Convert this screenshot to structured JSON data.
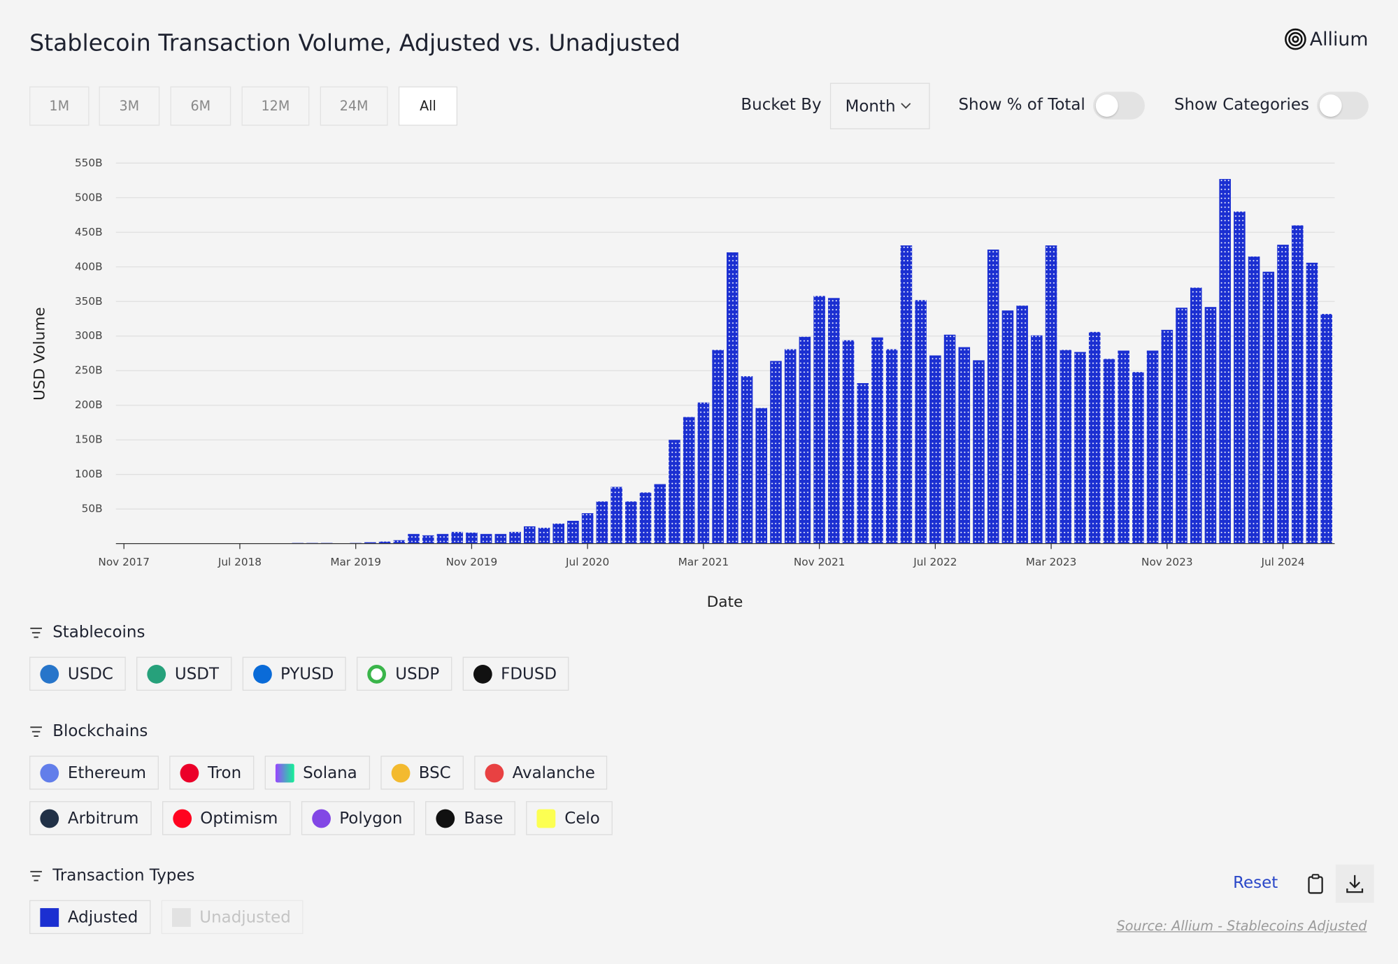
{
  "header": {
    "title": "Stablecoin Transaction Volume, Adjusted vs. Unadjusted",
    "logo": "Allium"
  },
  "controls": {
    "ranges": [
      "1M",
      "3M",
      "6M",
      "12M",
      "24M",
      "All"
    ],
    "bucket_label": "Bucket By",
    "bucket_value": "Month",
    "toggle_percent": "Show % of Total",
    "toggle_categories": "Show Categories"
  },
  "chart_data": {
    "type": "bar",
    "x_label": "Date",
    "y_label": "USD Volume",
    "categories": [
      "Nov 2017",
      null,
      null,
      null,
      null,
      null,
      null,
      null,
      "Jul 2018",
      null,
      null,
      null,
      null,
      null,
      null,
      null,
      "Mar 2019",
      null,
      null,
      null,
      null,
      null,
      null,
      null,
      "Nov 2019",
      null,
      null,
      null,
      null,
      null,
      null,
      null,
      "Jul 2020",
      null,
      null,
      null,
      null,
      null,
      null,
      null,
      "Mar 2021",
      null,
      null,
      null,
      null,
      null,
      null,
      null,
      "Nov 2021",
      null,
      null,
      null,
      null,
      null,
      null,
      null,
      "Jul 2022",
      null,
      null,
      null,
      null,
      null,
      null,
      null,
      "Mar 2023",
      null,
      null,
      null,
      null,
      null,
      null,
      null,
      "Nov 2023",
      null,
      null,
      null,
      null,
      null,
      null,
      null,
      "Jul 2024",
      null,
      null,
      null
    ],
    "series": [
      {
        "name": "Adjusted",
        "color": "#1b2fd1",
        "values": [
          0,
          0,
          0,
          0,
          0,
          0,
          0,
          0,
          0,
          0,
          0.3,
          0.5,
          1,
          1,
          1,
          0.5,
          1,
          2,
          3,
          5,
          14,
          12,
          14,
          17,
          16,
          14,
          14,
          17,
          25,
          23,
          29,
          33,
          44,
          61,
          82,
          61,
          74,
          86,
          150,
          183,
          204,
          280,
          421,
          242,
          196,
          264,
          281,
          299,
          358,
          355,
          294,
          232,
          298,
          281,
          431,
          352,
          272,
          302,
          284,
          265,
          425,
          337,
          344,
          301,
          431,
          280,
          277,
          306,
          267,
          279,
          248,
          279,
          309,
          341,
          370,
          342,
          527,
          480,
          415,
          393,
          432,
          460,
          406,
          332
        ]
      }
    ],
    "ylim": [
      0,
      550
    ],
    "yticks": [
      {
        "value": 50,
        "label": "50B"
      },
      {
        "value": 100,
        "label": "100B"
      },
      {
        "value": 150,
        "label": "150B"
      },
      {
        "value": 200,
        "label": "200B"
      },
      {
        "value": 250,
        "label": "250B"
      },
      {
        "value": 300,
        "label": "300B"
      },
      {
        "value": 350,
        "label": "350B"
      },
      {
        "value": 400,
        "label": "400B"
      },
      {
        "value": 450,
        "label": "450B"
      },
      {
        "value": 500,
        "label": "500B"
      },
      {
        "value": 550,
        "label": "550B"
      }
    ],
    "grid": true
  },
  "filters": {
    "stablecoins": {
      "title": "Stablecoins",
      "items": [
        "USDC",
        "USDT",
        "PYUSD",
        "USDP",
        "FDUSD"
      ]
    },
    "blockchains": {
      "title": "Blockchains",
      "items": [
        "Ethereum",
        "Tron",
        "Solana",
        "BSC",
        "Avalanche",
        "Arbitrum",
        "Optimism",
        "Polygon",
        "Base",
        "Celo"
      ]
    },
    "transaction_types": {
      "title": "Transaction Types",
      "unadjusted": "Unadjusted"
    }
  },
  "footer": {
    "reset": "Reset",
    "source": "Source: Allium - Stablecoins Adjusted"
  }
}
